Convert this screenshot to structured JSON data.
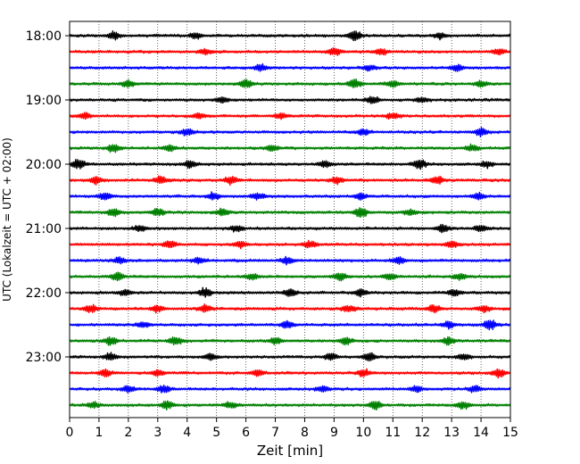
{
  "chart_data": {
    "type": "line",
    "title": "",
    "xlabel": "Zeit  [min]",
    "ylabel": "UTC (Lokalzeit = UTC + 02:00)",
    "xlim": [
      0,
      15
    ],
    "x_ticks": [
      "0",
      "1",
      "2",
      "3",
      "4",
      "5",
      "6",
      "7",
      "8",
      "9",
      "10",
      "11",
      "12",
      "13",
      "14",
      "15"
    ],
    "y_ticks": [
      "18:00",
      "19:00",
      "20:00",
      "21:00",
      "22:00",
      "23:00"
    ],
    "grid": "vertical-dotted",
    "minutes_per_trace": 15,
    "trace_colors": [
      "#000000",
      "#ff0000",
      "#0000ff",
      "#008000"
    ],
    "series": [
      {
        "start": "18:00",
        "color": "#000000",
        "bursts": [
          [
            9.7,
            1.6
          ],
          [
            1.5,
            1.0
          ],
          [
            4.3,
            0.9
          ],
          [
            12.6,
            0.8
          ]
        ]
      },
      {
        "start": "18:15",
        "color": "#ff0000",
        "bursts": [
          [
            9.0,
            1.1
          ],
          [
            4.6,
            0.8
          ],
          [
            10.6,
            0.9
          ],
          [
            14.6,
            0.8
          ]
        ]
      },
      {
        "start": "18:30",
        "color": "#0000ff",
        "bursts": [
          [
            6.5,
            1.0
          ],
          [
            13.2,
            0.9
          ],
          [
            10.2,
            0.8
          ]
        ]
      },
      {
        "start": "18:45",
        "color": "#008000",
        "bursts": [
          [
            6.0,
            1.4
          ],
          [
            9.7,
            1.3
          ],
          [
            2.0,
            1.1
          ],
          [
            11.0,
            1.0
          ],
          [
            14.0,
            0.9
          ]
        ]
      },
      {
        "start": "19:00",
        "color": "#000000",
        "bursts": [
          [
            10.3,
            1.1
          ],
          [
            5.2,
            0.9
          ],
          [
            12.0,
            0.8
          ]
        ]
      },
      {
        "start": "19:15",
        "color": "#ff0000",
        "bursts": [
          [
            0.5,
            0.9
          ],
          [
            4.4,
            0.8
          ],
          [
            7.2,
            0.8
          ],
          [
            11.0,
            0.9
          ]
        ]
      },
      {
        "start": "19:30",
        "color": "#0000ff",
        "bursts": [
          [
            4.0,
            1.1
          ],
          [
            10.0,
            0.9
          ],
          [
            14.0,
            1.3
          ]
        ]
      },
      {
        "start": "19:45",
        "color": "#008000",
        "bursts": [
          [
            1.5,
            1.2
          ],
          [
            3.4,
            1.0
          ],
          [
            6.9,
            0.9
          ],
          [
            13.7,
            0.9
          ]
        ]
      },
      {
        "start": "20:00",
        "color": "#000000",
        "bursts": [
          [
            0.3,
            1.4
          ],
          [
            11.9,
            1.5
          ],
          [
            4.1,
            1.1
          ],
          [
            8.7,
            1.0
          ],
          [
            14.2,
            0.9
          ]
        ]
      },
      {
        "start": "20:15",
        "color": "#ff0000",
        "bursts": [
          [
            0.9,
            1.0
          ],
          [
            3.1,
            1.2
          ],
          [
            5.5,
            1.1
          ],
          [
            12.5,
            1.2
          ],
          [
            9.1,
            0.9
          ]
        ]
      },
      {
        "start": "20:30",
        "color": "#0000ff",
        "bursts": [
          [
            1.2,
            1.0
          ],
          [
            4.9,
            1.1
          ],
          [
            6.4,
            1.0
          ],
          [
            9.9,
            0.9
          ],
          [
            13.9,
            1.0
          ]
        ]
      },
      {
        "start": "20:45",
        "color": "#008000",
        "bursts": [
          [
            1.5,
            1.2
          ],
          [
            3.0,
            1.1
          ],
          [
            9.9,
            1.5
          ],
          [
            5.2,
            1.0
          ],
          [
            11.6,
            0.9
          ]
        ]
      },
      {
        "start": "21:00",
        "color": "#000000",
        "bursts": [
          [
            12.7,
            1.2
          ],
          [
            5.7,
            0.9
          ],
          [
            14.0,
            1.0
          ],
          [
            2.4,
            0.8
          ]
        ]
      },
      {
        "start": "21:15",
        "color": "#ff0000",
        "bursts": [
          [
            3.4,
            1.2
          ],
          [
            13.0,
            1.1
          ],
          [
            8.2,
            1.0
          ],
          [
            5.8,
            0.9
          ]
        ]
      },
      {
        "start": "21:30",
        "color": "#0000ff",
        "bursts": [
          [
            7.4,
            1.1
          ],
          [
            1.7,
            0.9
          ],
          [
            11.2,
            1.0
          ],
          [
            4.4,
            0.9
          ]
        ]
      },
      {
        "start": "21:45",
        "color": "#008000",
        "bursts": [
          [
            9.2,
            1.2
          ],
          [
            1.6,
            1.0
          ],
          [
            10.9,
            1.0
          ],
          [
            13.3,
            1.0
          ],
          [
            6.2,
            0.9
          ]
        ]
      },
      {
        "start": "22:00",
        "color": "#000000",
        "bursts": [
          [
            4.6,
            1.3
          ],
          [
            7.5,
            1.2
          ],
          [
            9.9,
            1.1
          ],
          [
            13.1,
            1.0
          ],
          [
            1.9,
            0.9
          ]
        ]
      },
      {
        "start": "22:15",
        "color": "#ff0000",
        "bursts": [
          [
            0.7,
            1.2
          ],
          [
            4.6,
            1.1
          ],
          [
            9.5,
            1.0
          ],
          [
            12.4,
            1.2
          ],
          [
            14.1,
            1.0
          ],
          [
            3.0,
            1.0
          ]
        ]
      },
      {
        "start": "22:30",
        "color": "#0000ff",
        "bursts": [
          [
            14.3,
            1.5
          ],
          [
            7.4,
            1.1
          ],
          [
            12.9,
            1.0
          ],
          [
            2.5,
            0.9
          ]
        ]
      },
      {
        "start": "22:45",
        "color": "#008000",
        "bursts": [
          [
            3.6,
            1.3
          ],
          [
            1.4,
            1.1
          ],
          [
            7.0,
            1.0
          ],
          [
            9.4,
            1.2
          ],
          [
            12.9,
            1.0
          ]
        ]
      },
      {
        "start": "23:00",
        "color": "#000000",
        "bursts": [
          [
            1.4,
            1.1
          ],
          [
            10.2,
            1.2
          ],
          [
            8.9,
            1.0
          ],
          [
            13.4,
            1.0
          ],
          [
            4.8,
            0.9
          ]
        ]
      },
      {
        "start": "23:15",
        "color": "#ff0000",
        "bursts": [
          [
            1.2,
            1.1
          ],
          [
            6.4,
            1.0
          ],
          [
            10.0,
            1.2
          ],
          [
            14.6,
            1.1
          ],
          [
            3.0,
            0.9
          ]
        ]
      },
      {
        "start": "23:30",
        "color": "#0000ff",
        "bursts": [
          [
            2.0,
            1.1
          ],
          [
            3.2,
            1.2
          ],
          [
            8.6,
            1.0
          ],
          [
            13.8,
            1.0
          ],
          [
            11.8,
            0.9
          ]
        ]
      },
      {
        "start": "23:45",
        "color": "#008000",
        "bursts": [
          [
            3.3,
            1.2
          ],
          [
            10.4,
            1.4
          ],
          [
            5.5,
            1.0
          ],
          [
            13.4,
            1.1
          ],
          [
            0.8,
            0.9
          ]
        ]
      }
    ]
  }
}
